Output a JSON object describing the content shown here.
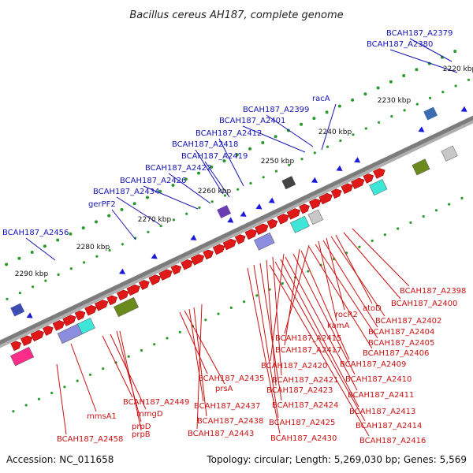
{
  "title": "Bacillus cereus AH187, complete genome",
  "footer": {
    "accession": "Accession: NC_011658",
    "topology": "Topology: circular; Length: 5,269,030 bp; Genes: 5,569"
  },
  "colors": {
    "background": "#ffffff",
    "backbone": "#8a8a8a",
    "gene_forward": "#e01818",
    "gene_reverse": "#1a1ad8",
    "label_blue": "#1414b4",
    "label_red": "#c81414",
    "tick": "#2a9a2a"
  },
  "kbp_labels": [
    "2220 kbp",
    "2230 kbp",
    "2240 kbp",
    "2250 kbp",
    "2260 kbp",
    "2270 kbp",
    "2280 kbp",
    "2290 kbp"
  ],
  "blue_labels": [
    "BCAH187_A2379",
    "BCAH187_A2380",
    "racA",
    "BCAH187_A2399",
    "BCAH187_A2401",
    "BCAH187_A2412",
    "BCAH187_A2418",
    "BCAH187_A2419",
    "BCAH187_A2422",
    "BCAH187_A2426",
    "BCAH187_A2434",
    "gerPF2",
    "BCAH187_A2456"
  ],
  "red_labels": [
    "BCAH187_A2398",
    "BCAH187_A2400",
    "atoD",
    "rocR2",
    "BCAH187_A2402",
    "kamA",
    "BCAH187_A2404",
    "BCAH187_A2415",
    "BCAH187_A2405",
    "BCAH187_A2417",
    "BCAH187_A2406",
    "BCAH187_A2420",
    "BCAH187_A2409",
    "BCAH187_A2435",
    "BCAH187_A2421",
    "BCAH187_A2410",
    "prsA",
    "BCAH187_A2423",
    "BCAH187_A2411",
    "BCAH187_A2449",
    "BCAH187_A2437",
    "BCAH187_A2424",
    "BCAH187_A2413",
    "mmsA1",
    "mmgD",
    "BCAH187_A2438",
    "BCAH187_A2425",
    "BCAH187_A2414",
    "prpD",
    "BCAH187_A2443",
    "BCAH187_A2416",
    "prpB",
    "BCAH187_A2430",
    "BCAH187_A2458"
  ]
}
